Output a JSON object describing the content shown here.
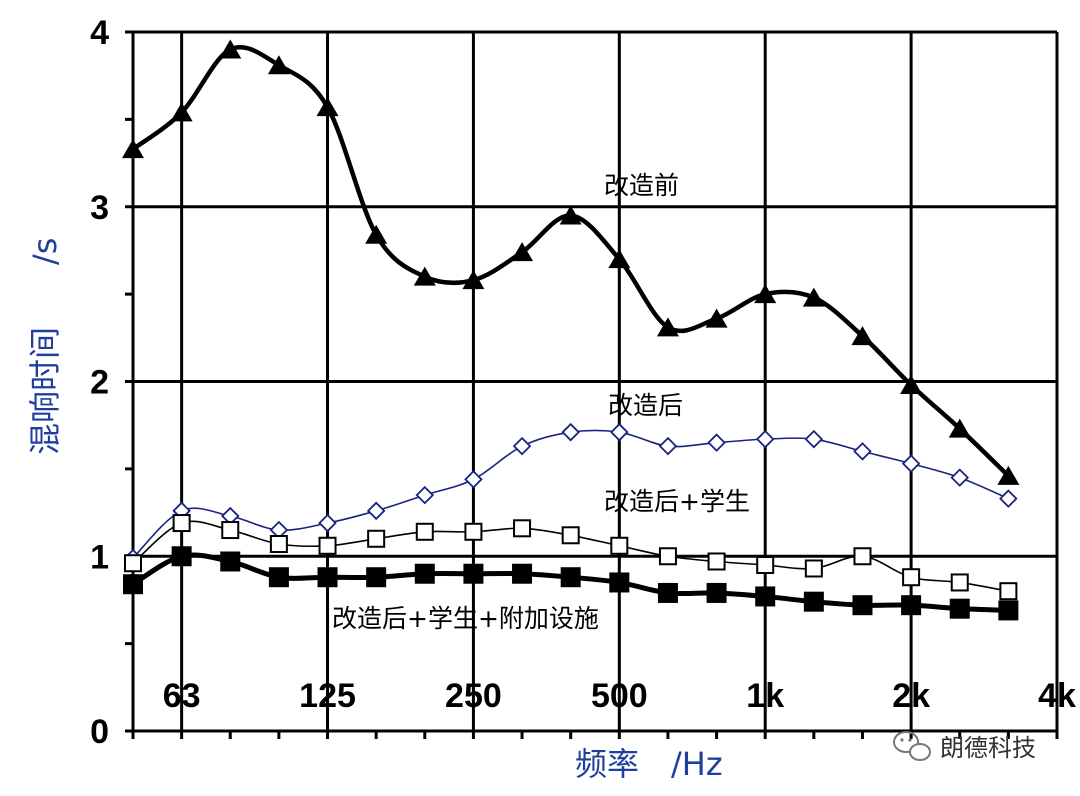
{
  "chart_data": {
    "type": "line",
    "xlabel": "频率 /Hz",
    "ylabel": "混响时间 /s",
    "ylim": [
      0,
      4
    ],
    "y_ticks": [
      "0",
      "1",
      "2",
      "3",
      "4"
    ],
    "x_scale": "log (1/3 octave bands)",
    "x_tick_labels": [
      "63",
      "125",
      "250",
      "500",
      "1k",
      "2k",
      "4k"
    ],
    "x": [
      "50",
      "63",
      "80",
      "100",
      "125",
      "160",
      "200",
      "250",
      "315",
      "400",
      "500",
      "630",
      "800",
      "1k",
      "1.25k",
      "1.6k",
      "2k",
      "2.5k",
      "3.15k",
      "4k"
    ],
    "grid": true,
    "series": [
      {
        "name": "改造前",
        "marker": "filled-triangle",
        "color": "#000000",
        "values": [
          3.33,
          3.54,
          3.9,
          3.81,
          3.57,
          2.84,
          2.6,
          2.58,
          2.74,
          2.95,
          2.7,
          2.31,
          2.36,
          2.5,
          2.48,
          2.26,
          1.98,
          1.73,
          1.46,
          null
        ]
      },
      {
        "name": "改造后",
        "marker": "open-diamond",
        "color": "#1a237e",
        "values": [
          0.99,
          1.26,
          1.23,
          1.15,
          1.19,
          1.26,
          1.35,
          1.44,
          1.63,
          1.71,
          1.71,
          1.63,
          1.65,
          1.67,
          1.67,
          1.6,
          1.53,
          1.45,
          1.33,
          null
        ]
      },
      {
        "name": "改造后+学生",
        "marker": "open-square",
        "color": "#000000",
        "values": [
          0.96,
          1.19,
          1.15,
          1.07,
          1.06,
          1.1,
          1.14,
          1.14,
          1.16,
          1.12,
          1.06,
          1.0,
          0.97,
          0.95,
          0.93,
          1.0,
          0.88,
          0.85,
          0.8,
          null
        ]
      },
      {
        "name": "改造后+学生+附加设施",
        "marker": "filled-square",
        "color": "#000000",
        "values": [
          0.84,
          1.0,
          0.97,
          0.88,
          0.88,
          0.88,
          0.9,
          0.9,
          0.9,
          0.88,
          0.85,
          0.79,
          0.79,
          0.77,
          0.74,
          0.72,
          0.72,
          0.7,
          0.69,
          null
        ]
      }
    ]
  },
  "labels": {
    "s1": "改造前",
    "s2": "改造后",
    "s3": "改造后+学生",
    "s4": "改造后+学生+附加设施",
    "xlabel": "频率　/Hz",
    "ylabel_main": "混响时间",
    "ylabel_unit": "/s"
  },
  "watermark": {
    "icon": "wechat-icon",
    "text": "朗德科技"
  }
}
